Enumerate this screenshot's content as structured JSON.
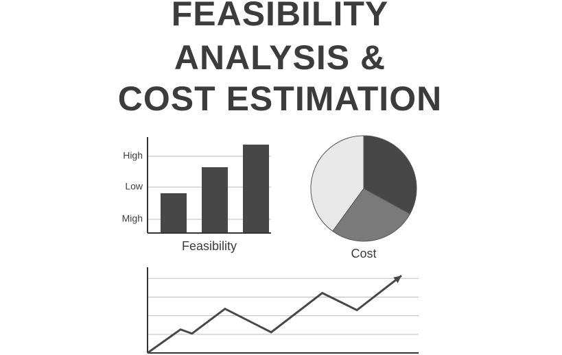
{
  "title": [
    "FEASIBILITY",
    "ANALYSIS &",
    "COST ESTIMATION"
  ],
  "chart_data": [
    {
      "type": "bar",
      "xlabel": "Feasibility",
      "values": [
        2.9,
        4.8,
        6.45
      ],
      "color": "#474747",
      "ylim": [
        0,
        7
      ],
      "yticks": [
        {
          "value": 1,
          "label": "Migh"
        },
        {
          "value": 3.35,
          "label": "Low"
        },
        {
          "value": 5.6,
          "label": "High"
        }
      ],
      "grid": true
    },
    {
      "type": "pie",
      "label": "Cost",
      "values": [
        33,
        27,
        40
      ],
      "colors": [
        "#474747",
        "#7a7a7a",
        "#e8e8e8"
      ]
    },
    {
      "type": "line",
      "x": [
        0,
        1,
        1.35,
        2.35,
        3.75,
        5.3,
        6.35,
        7.7
      ],
      "values": [
        0,
        1.26,
        1.04,
        2.37,
        1.11,
        3.22,
        2.3,
        4.15
      ],
      "xlim": [
        0,
        7.7
      ],
      "ylim": [
        0,
        4.6
      ],
      "yticks": [
        1,
        2,
        3,
        4
      ],
      "grid": true,
      "color": "#474747"
    }
  ]
}
